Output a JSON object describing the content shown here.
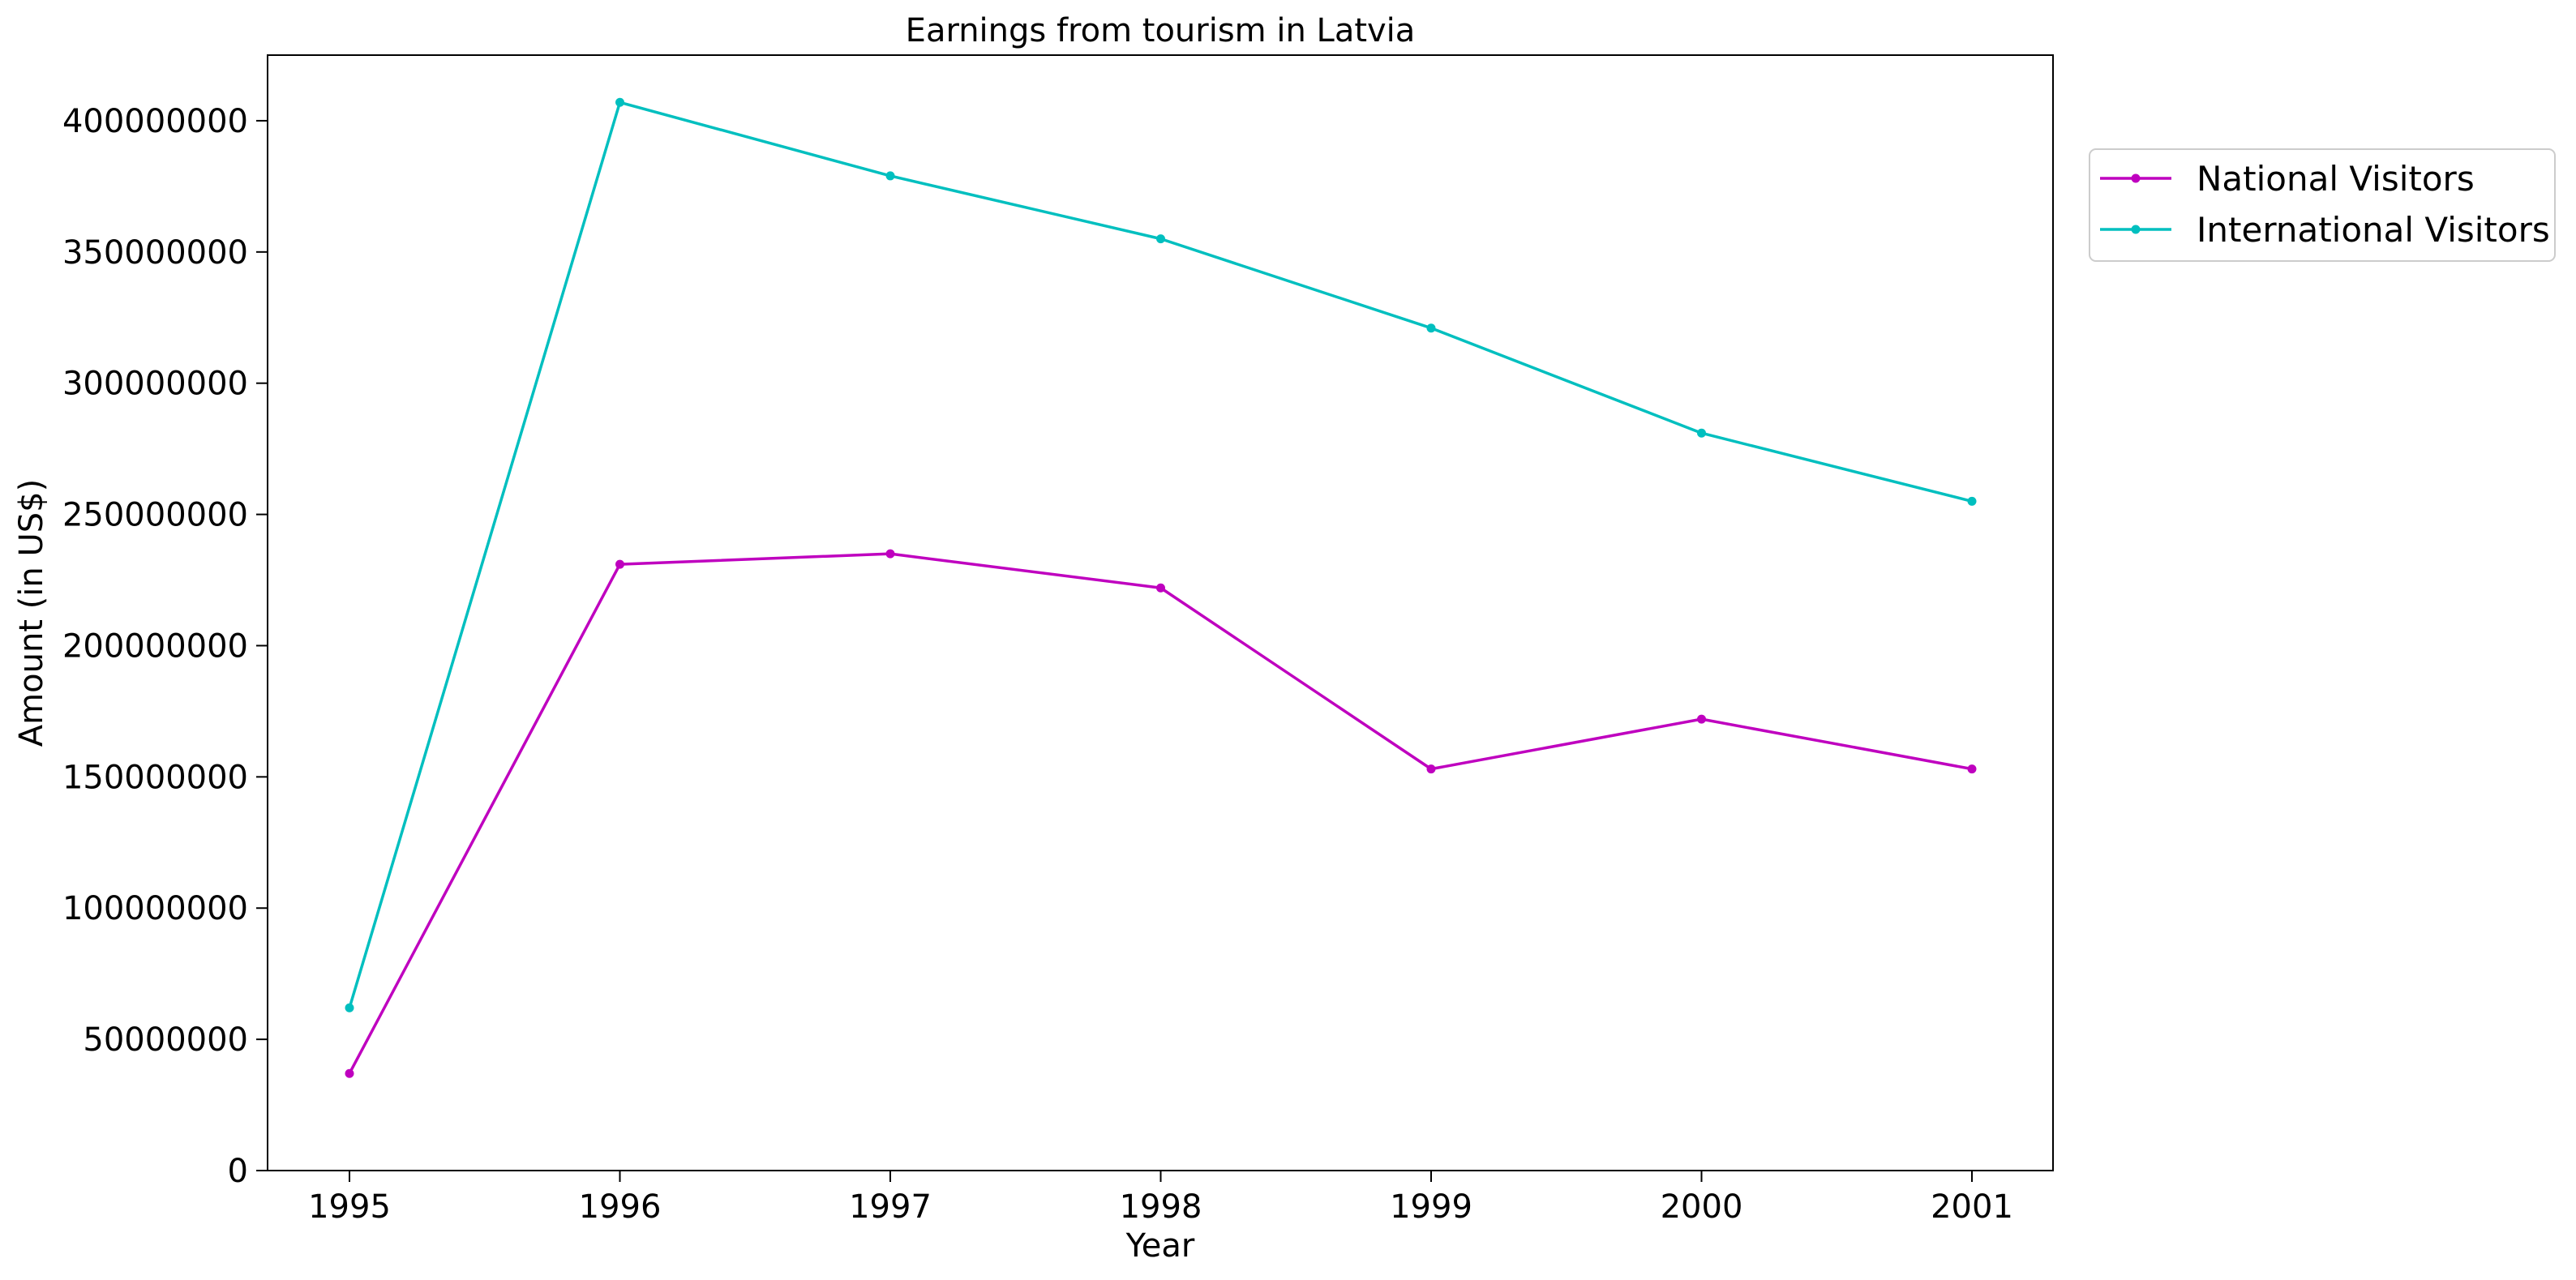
{
  "chart_data": {
    "type": "line",
    "title": "Earnings from tourism in Latvia",
    "xlabel": "Year",
    "ylabel": "Amount (in US$)",
    "categories": [
      "1995",
      "1996",
      "1997",
      "1998",
      "1999",
      "2000",
      "2001"
    ],
    "y_ticks": [
      "0",
      "50000000",
      "100000000",
      "150000000",
      "200000000",
      "250000000",
      "300000000",
      "350000000",
      "400000000"
    ],
    "ylim": [
      0,
      425000000
    ],
    "grid": false,
    "legend_position": "outside-top-right",
    "series": [
      {
        "name": "National Visitors",
        "color": "#bf00bf",
        "values": [
          37000000,
          231000000,
          235000000,
          222000000,
          153000000,
          172000000,
          153000000
        ]
      },
      {
        "name": "International Visitors",
        "color": "#00bfbf",
        "values": [
          62000000,
          407000000,
          379000000,
          355000000,
          321000000,
          281000000,
          255000000
        ]
      }
    ]
  }
}
